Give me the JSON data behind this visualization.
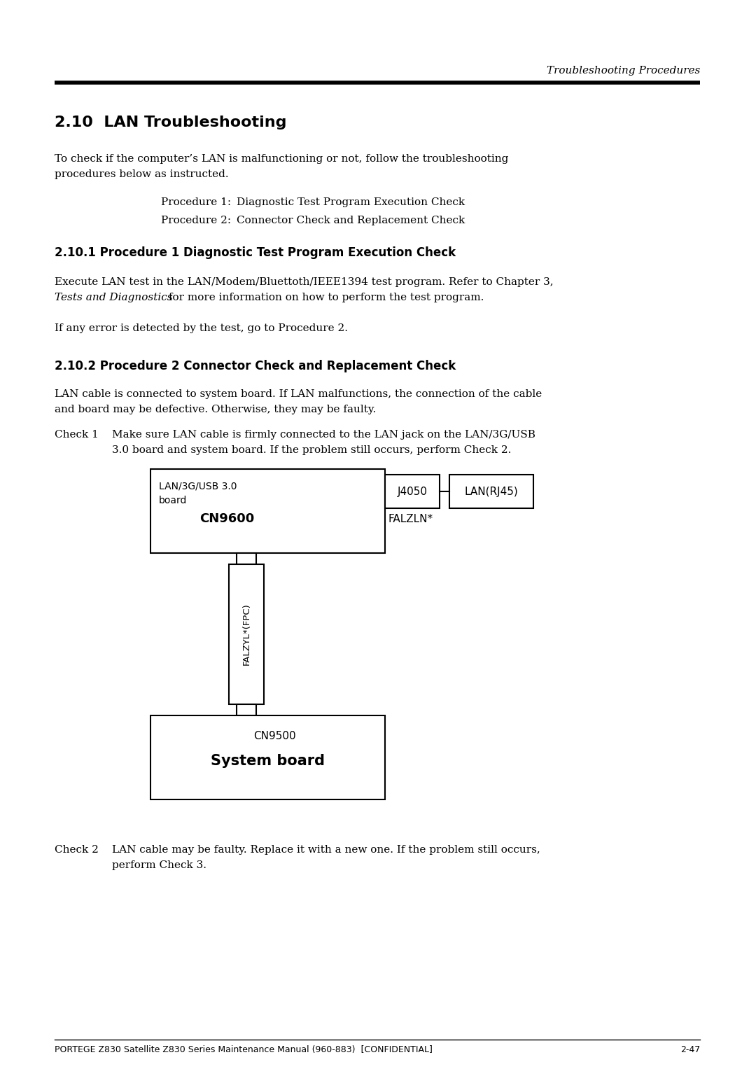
{
  "bg_color": "#ffffff",
  "page_width": 10.8,
  "page_height": 15.27,
  "dpi": 100,
  "header_italic": "Troubleshooting Procedures",
  "section_title": "2.10  LAN Troubleshooting",
  "intro_text_line1": "To check if the computer’s LAN is malfunctioning or not, follow the troubleshooting",
  "intro_text_line2": "procedures below as instructed.",
  "proc1_label": "Procedure 1:",
  "proc1_text": "Diagnostic Test Program Execution Check",
  "proc2_label": "Procedure 2:",
  "proc2_text": "Connector Check and Replacement Check",
  "sub1_title": "2.10.1 Procedure 1 Diagnostic Test Program Execution Check",
  "sub1_body_line1": "Execute LAN test in the LAN/Modem/Bluettoth/IEEE1394 test program. Refer to Chapter 3,",
  "sub1_body_italic": "Tests and Diagnostics",
  "sub1_body_rest": " for more information on how to perform the test program.",
  "sub1_body2": "If any error is detected by the test, go to Procedure 2.",
  "sub2_title": "2.10.2 Procedure 2 Connector Check and Replacement Check",
  "sub2_body_line1": "LAN cable is connected to system board. If LAN malfunctions, the connection of the cable",
  "sub2_body_line2": "and board may be defective. Otherwise, they may be faulty.",
  "check1_label": "Check 1",
  "check1_text_line1": "Make sure LAN cable is firmly connected to the LAN jack on the LAN/3G/USB",
  "check1_text_line2": "3.0 board and system board. If the problem still occurs, perform Check 2.",
  "check2_label": "Check 2",
  "check2_text_line1": "LAN cable may be faulty. Replace it with a new one. If the problem still occurs,",
  "check2_text_line2": "perform Check 3.",
  "footer_line": "PORTEGE Z830 Satellite Z830 Series Maintenance Manual (960-883)  [CONFIDENTIAL]",
  "footer_page": "2-47",
  "diagram": {
    "board_label1": "LAN/3G/USB 3.0",
    "board_label2": "board",
    "j4050_label": "J4050",
    "lan_label": "LAN(RJ45)",
    "cn9600_label": "CN9600",
    "falzln_label": "FALZLN*",
    "fpc_label": "FALZYL*(FPC)",
    "cn9500_label": "CN9500",
    "system_label": "System board"
  },
  "main_body_fontsize": 11,
  "heading_fontsize": 12,
  "section_fontsize": 16,
  "header_fontsize": 11,
  "footer_fontsize": 9
}
